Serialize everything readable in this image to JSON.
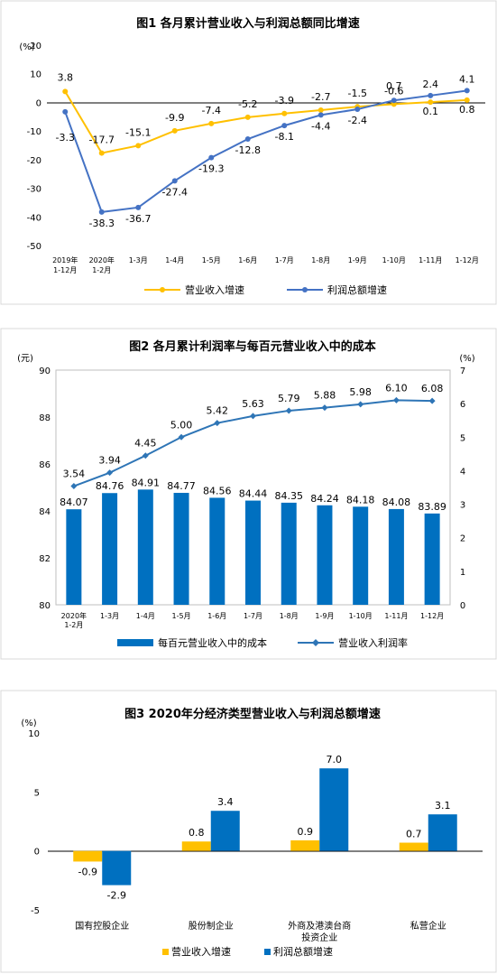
{
  "chart_data": [
    {
      "type": "line",
      "title": "图1  各月累计营业收入与利润总额同比增速",
      "ylabel": "(%)",
      "ylim": [
        -50,
        20
      ],
      "yticks": [
        "20",
        "10",
        "0",
        "-10",
        "-20",
        "-30",
        "-40",
        "-50"
      ],
      "categories": [
        "2019年\n1-12月",
        "2020年\n1-2月",
        "1-3月",
        "1-4月",
        "1-5月",
        "1-6月",
        "1-7月",
        "1-8月",
        "1-9月",
        "1-10月",
        "1-11月",
        "1-12月"
      ],
      "series": [
        {
          "name": "营业收入增速",
          "color": "#ffc000",
          "values": [
            3.8,
            -17.7,
            -15.1,
            -9.9,
            -7.4,
            -5.2,
            -3.9,
            -2.7,
            -1.5,
            -0.6,
            0.1,
            0.8
          ],
          "labels": [
            "3.8",
            "-17.7",
            "-15.1",
            "-9.9",
            "-7.4",
            "-5.2",
            "-3.9",
            "-2.7",
            "-1.5",
            "-0.6",
            "0.1",
            "0.8"
          ]
        },
        {
          "name": "利润总额增速",
          "color": "#4472c4",
          "values": [
            -3.3,
            -38.3,
            -36.7,
            -27.4,
            -19.3,
            -12.8,
            -8.1,
            -4.4,
            -2.4,
            0.7,
            2.4,
            4.1
          ],
          "labels": [
            "-3.3",
            "-38.3",
            "-36.7",
            "-27.4",
            "-19.3",
            "-12.8",
            "-8.1",
            "-4.4",
            "-2.4",
            "0.7",
            "2.4",
            "4.1"
          ]
        }
      ],
      "legend": "bottom"
    },
    {
      "type": "bar",
      "title": "图2  各月累计利润率与每百元营业收入中的成本",
      "ylabel_left": "(元)",
      "ylabel_right": "(%)",
      "ylim_left": [
        80,
        90
      ],
      "yticks_left": [
        "90",
        "88",
        "86",
        "84",
        "82",
        "80"
      ],
      "ylim_right": [
        0,
        7
      ],
      "yticks_right": [
        "7",
        "6",
        "5",
        "4",
        "3",
        "2",
        "1",
        "0"
      ],
      "categories": [
        "2020年\n1-2月",
        "1-3月",
        "1-4月",
        "1-5月",
        "1-6月",
        "1-7月",
        "1-8月",
        "1-9月",
        "1-10月",
        "1-11月",
        "1-12月"
      ],
      "series": [
        {
          "name": "每百元营业收入中的成本",
          "kind": "bar",
          "axis": "left",
          "color": "#0070c0",
          "values": [
            84.07,
            84.76,
            84.91,
            84.77,
            84.56,
            84.44,
            84.35,
            84.24,
            84.18,
            84.08,
            83.89
          ],
          "labels": [
            "84.07",
            "84.76",
            "84.91",
            "84.77",
            "84.56",
            "84.44",
            "84.35",
            "84.24",
            "84.18",
            "84.08",
            "83.89"
          ]
        },
        {
          "name": "营业收入利润率",
          "kind": "line",
          "axis": "right",
          "color": "#2e75b6",
          "values": [
            3.54,
            3.94,
            4.45,
            5.0,
            5.42,
            5.63,
            5.79,
            5.88,
            5.98,
            6.1,
            6.08
          ],
          "labels": [
            "3.54",
            "3.94",
            "4.45",
            "5.00",
            "5.42",
            "5.63",
            "5.79",
            "5.88",
            "5.98",
            "6.10",
            "6.08"
          ]
        }
      ],
      "legend": "bottom"
    },
    {
      "type": "bar",
      "title": "图3  2020年分经济类型营业收入与利润总额增速",
      "ylabel": "(%)",
      "ylim": [
        -5,
        10
      ],
      "yticks": [
        "10",
        "5",
        "0",
        "-5"
      ],
      "categories": [
        "国有控股企业",
        "股份制企业",
        "外商及港澳台商\n投资企业",
        "私营企业"
      ],
      "series": [
        {
          "name": "营业收入增速",
          "color": "#ffc000",
          "values": [
            -0.9,
            0.8,
            0.9,
            0.7
          ],
          "labels": [
            "-0.9",
            "0.8",
            "0.9",
            "0.7"
          ]
        },
        {
          "name": "利润总额增速",
          "color": "#0070c0",
          "values": [
            -2.9,
            3.4,
            7.0,
            3.1
          ],
          "labels": [
            "-2.9",
            "3.4",
            "7.0",
            "3.1"
          ]
        }
      ],
      "legend": "bottom"
    }
  ]
}
